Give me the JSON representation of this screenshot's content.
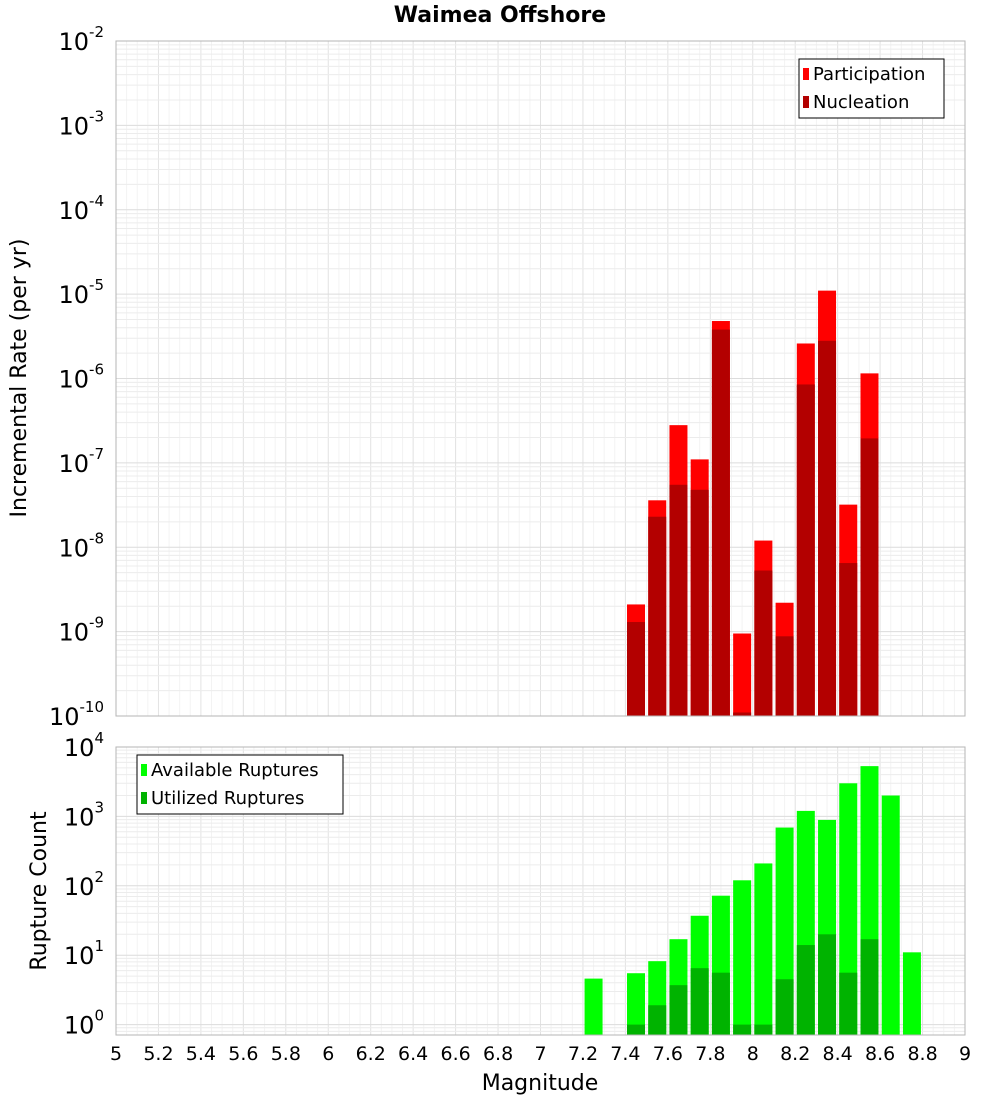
{
  "chart_data": {
    "title": "Waimea Offshore",
    "xlabel": "Magnitude",
    "xlim": [
      5,
      9
    ],
    "xticks": [
      "5",
      "5.2",
      "5.4",
      "5.6",
      "5.8",
      "6",
      "6.2",
      "6.4",
      "6.6",
      "6.8",
      "7",
      "7.2",
      "7.4",
      "7.6",
      "7.8",
      "8",
      "8.2",
      "8.4",
      "8.6",
      "8.8",
      "9"
    ],
    "panels": [
      {
        "type": "bar",
        "ylabel": "Incremental Rate (per yr)",
        "y_scale": "log",
        "ylim_exp": [
          -10,
          -2
        ],
        "y_tick_base": "10",
        "y_tick_exps": [
          "-10",
          "-9",
          "-8",
          "-7",
          "-6",
          "-5",
          "-4",
          "-3",
          "-2"
        ],
        "grid": true,
        "legend_position": "top-right",
        "series": [
          {
            "name": "Participation",
            "color": "#ff0000",
            "x": [
              7.45,
              7.55,
              7.65,
              7.75,
              7.85,
              7.95,
              8.05,
              8.15,
              8.25,
              8.35,
              8.45,
              8.55
            ],
            "values": [
              2.1e-09,
              3.6e-08,
              2.8e-07,
              1.1e-07,
              4.8e-06,
              9.5e-10,
              1.2e-08,
              2.2e-09,
              2.6e-06,
              1.1e-05,
              3.2e-08,
              1.15e-06
            ]
          },
          {
            "name": "Nucleation",
            "color": "#b30000",
            "x": [
              7.45,
              7.55,
              7.65,
              7.75,
              7.85,
              7.95,
              8.05,
              8.15,
              8.25,
              8.35,
              8.45,
              8.55
            ],
            "values": [
              1.3e-09,
              2.3e-08,
              5.5e-08,
              4.8e-08,
              3.8e-06,
              1.1e-10,
              5.3e-09,
              8.8e-10,
              8.5e-07,
              2.8e-06,
              6.5e-09,
              1.95e-07
            ]
          }
        ]
      },
      {
        "type": "bar",
        "ylabel": "Rupture Count",
        "y_scale": "log",
        "ylim_exp": [
          -0.15,
          4
        ],
        "y_tick_base": "10",
        "y_tick_exps": [
          "0",
          "1",
          "2",
          "3",
          "4"
        ],
        "grid": true,
        "legend_position": "top-left",
        "series": [
          {
            "name": "Available Ruptures",
            "color": "#00ff00",
            "x": [
              7.25,
              7.45,
              7.55,
              7.65,
              7.75,
              7.85,
              7.95,
              8.05,
              8.15,
              8.25,
              8.35,
              8.45,
              8.55,
              8.65,
              8.75
            ],
            "values": [
              4.6,
              5.5,
              8.2,
              17,
              37,
              72,
              120,
              210,
              690,
              1200,
              890,
              3000,
              5300,
              2000,
              11
            ]
          },
          {
            "name": "Utilized Ruptures",
            "color": "#00b300",
            "x": [
              7.45,
              7.55,
              7.65,
              7.75,
              7.85,
              7.95,
              8.05,
              8.15,
              8.25,
              8.35,
              8.45,
              8.55
            ],
            "values": [
              1,
              1.9,
              3.7,
              6.5,
              5.6,
              1,
              1,
              4.5,
              14,
              20,
              5.6,
              17
            ]
          }
        ]
      }
    ]
  }
}
